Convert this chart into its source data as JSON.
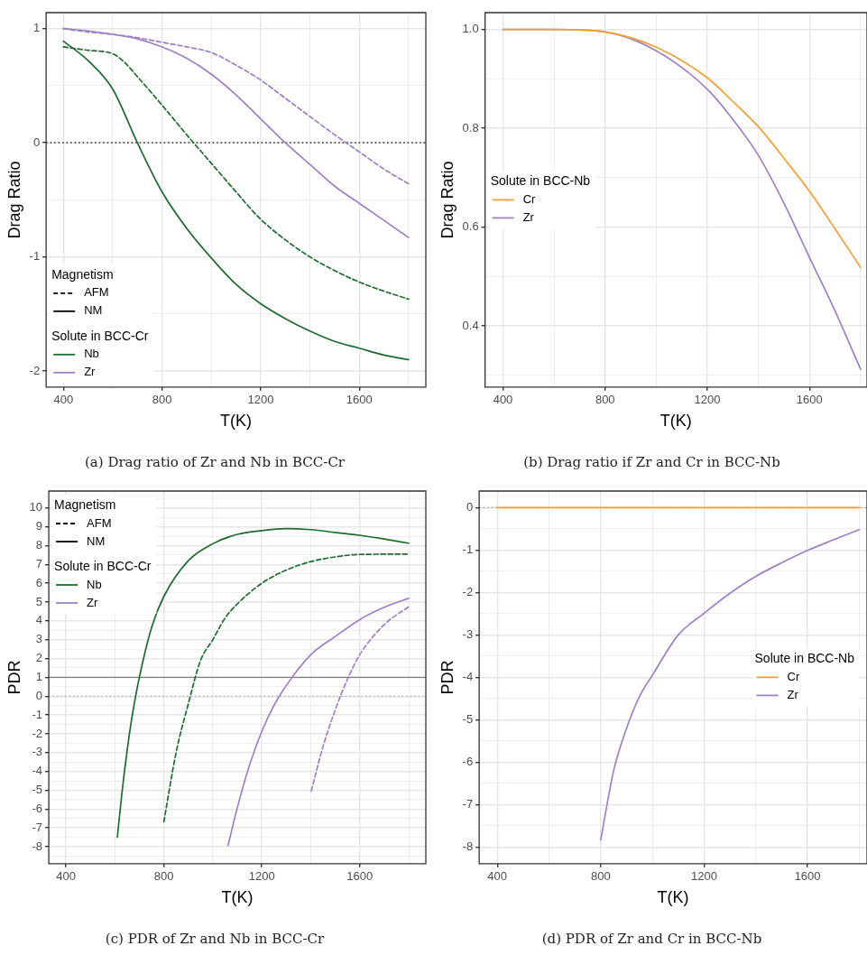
{
  "chart_data": [
    {
      "type": "line",
      "title": "(a) Drag ratio of Zr and Nb in BCC-Cr",
      "xlabel": "T(K)",
      "ylabel": "Drag Ratio",
      "legend_title": "Solute in BCC-Cr",
      "annotations": [
        "Magnetism",
        "AFM",
        "NM"
      ],
      "legend": "bottom left",
      "grid": true,
      "xlim": [
        330,
        1870
      ],
      "xticks": [
        400,
        {
          "value": 600,
          "label": null
        },
        800,
        {
          "value": 1000,
          "label": null
        },
        1200,
        {
          "value": 1400,
          "label": null
        },
        1600,
        {
          "value": 1800,
          "label": null
        }
      ],
      "ylim": [
        -2.14,
        1.14
      ],
      "yticks": [
        -2,
        {
          "value": -1.5,
          "label": null
        },
        -1,
        {
          "value": -0.5,
          "label": null
        },
        0,
        {
          "value": 0.5,
          "label": null
        },
        1
      ],
      "ref_lines": [
        {
          "axis": "y",
          "value": 0,
          "color": "#000000",
          "line_style": "dotted"
        }
      ],
      "series": [
        {
          "color": "#1e6b30",
          "line_style": "dashed",
          "x": [
            400,
            500,
            600,
            650,
            700,
            800,
            900,
            1000,
            1100,
            1200,
            1300,
            1400,
            1500,
            1600,
            1700,
            1800
          ],
          "values": [
            0.84,
            0.81,
            0.78,
            0.7,
            0.58,
            0.33,
            0.07,
            -0.18,
            -0.43,
            -0.67,
            -0.85,
            -1.0,
            -1.12,
            -1.22,
            -1.3,
            -1.37
          ]
        },
        {
          "name": "Nb",
          "color": "#1e6b30",
          "line_style": "solid",
          "x": [
            400,
            500,
            600,
            700,
            800,
            900,
            1000,
            1100,
            1200,
            1300,
            1400,
            1500,
            1600,
            1700,
            1800
          ],
          "values": [
            0.89,
            0.72,
            0.47,
            0,
            -0.43,
            -0.75,
            -1.01,
            -1.24,
            -1.41,
            -1.54,
            -1.65,
            -1.74,
            -1.8,
            -1.86,
            -1.9
          ]
        },
        {
          "color": "#9c82c4",
          "line_style": "dashed",
          "x": [
            400,
            500,
            600,
            700,
            800,
            900,
            1000,
            1100,
            1200,
            1300,
            1400,
            1500,
            1600,
            1700,
            1800
          ],
          "values": [
            1.0,
            0.97,
            0.95,
            0.92,
            0.88,
            0.84,
            0.79,
            0.68,
            0.55,
            0.39,
            0.23,
            0.07,
            -0.08,
            -0.23,
            -0.36
          ]
        },
        {
          "name": "Zr",
          "color": "#9c82c4",
          "line_style": "solid",
          "x": [
            400,
            500,
            600,
            700,
            800,
            900,
            1000,
            1100,
            1200,
            1300,
            1400,
            1500,
            1600,
            1700,
            1800
          ],
          "values": [
            1.0,
            0.98,
            0.95,
            0.91,
            0.84,
            0.74,
            0.6,
            0.42,
            0.21,
            0,
            -0.19,
            -0.38,
            -0.53,
            -0.68,
            -0.83
          ]
        }
      ]
    },
    {
      "type": "line",
      "title": "(b) Drag ratio if Zr and Cr in BCC-Nb",
      "xlabel": "T(K)",
      "ylabel": "Drag Ratio",
      "legend_title": "Solute in BCC-Nb",
      "legend": "left",
      "grid": true,
      "xlim": [
        330,
        1825
      ],
      "xticks": [
        400,
        {
          "value": 600,
          "label": null
        },
        800,
        {
          "value": 1000,
          "label": null
        },
        1200,
        {
          "value": 1400,
          "label": null
        },
        1600,
        {
          "value": 1800,
          "label": null
        }
      ],
      "ylim": [
        0.276,
        1.034
      ],
      "yticks": [
        {
          "value": 0.3,
          "label": null
        },
        0.4,
        {
          "value": 0.5,
          "label": null
        },
        0.6,
        {
          "value": 0.7,
          "label": null
        },
        0.8,
        {
          "value": 0.9,
          "label": null
        },
        {
          "value": 1,
          "label": "1.0"
        }
      ],
      "series": [
        {
          "name": "Cr",
          "color": "#f7a030",
          "x": [
            400,
            600,
            800,
            1000,
            1200,
            1300,
            1400,
            1500,
            1600,
            1700,
            1800
          ],
          "values": [
            1.0,
            1.0,
            0.995,
            0.964,
            0.902,
            0.854,
            0.803,
            0.739,
            0.672,
            0.596,
            0.518
          ]
        },
        {
          "name": "Zr",
          "color": "#9c82c4",
          "x": [
            400,
            600,
            800,
            1000,
            1200,
            1300,
            1400,
            1500,
            1600,
            1700,
            1800
          ],
          "values": [
            1.0,
            1.0,
            0.995,
            0.957,
            0.879,
            0.818,
            0.745,
            0.648,
            0.538,
            0.43,
            0.312
          ]
        }
      ]
    },
    {
      "type": "line",
      "title": "(c) PDR of Zr and Nb in BCC-Cr",
      "xlabel": "T(K)",
      "ylabel": "PDR",
      "legend_title": "Solute in BCC-Cr",
      "annotations": [
        "Magnetism",
        "AFM",
        "NM"
      ],
      "legend": "top left",
      "grid": true,
      "xlim": [
        330,
        1870
      ],
      "xticks": [
        400,
        {
          "value": 600,
          "label": null
        },
        800,
        {
          "value": 1000,
          "label": null
        },
        1200,
        {
          "value": 1400,
          "label": null
        },
        1600,
        {
          "value": 1800,
          "label": null
        }
      ],
      "ylim": [
        -8.9,
        10.9
      ],
      "yticks": [
        {
          "value": -8.5,
          "label": null
        },
        -8,
        {
          "value": -7.5,
          "label": null
        },
        -7,
        {
          "value": -6.5,
          "label": null
        },
        -6,
        {
          "value": -5.5,
          "label": null
        },
        -5,
        {
          "value": -4.5,
          "label": null
        },
        -4,
        {
          "value": -3.5,
          "label": null
        },
        -3,
        {
          "value": -2.5,
          "label": null
        },
        -2,
        {
          "value": -1.5,
          "label": null
        },
        -1,
        {
          "value": -0.5,
          "label": null
        },
        0,
        {
          "value": 0.5,
          "label": null
        },
        1,
        {
          "value": 1.5,
          "label": null
        },
        2,
        {
          "value": 2.5,
          "label": null
        },
        3,
        {
          "value": 3.5,
          "label": null
        },
        4,
        {
          "value": 4.5,
          "label": null
        },
        5,
        {
          "value": 5.5,
          "label": null
        },
        6,
        {
          "value": 6.5,
          "label": null
        },
        7,
        {
          "value": 7.5,
          "label": null
        },
        8,
        {
          "value": 8.5,
          "label": null
        },
        9,
        {
          "value": 9.5,
          "label": null
        },
        10,
        {
          "value": 10.5,
          "label": null
        }
      ],
      "ref_lines": [
        {
          "axis": "y",
          "value": 1,
          "color": "#7f7f7f",
          "line_style": "solid"
        },
        {
          "axis": "y",
          "value": 0,
          "color": "#9a9a9a",
          "line_style": "dotted"
        }
      ],
      "series": [
        {
          "color": "#1e6b30",
          "line_style": "dashed",
          "x": [
            800,
            850,
            900,
            950,
            1000,
            1050,
            1100,
            1200,
            1300,
            1400,
            1500,
            1600,
            1800
          ],
          "values": [
            -6.67,
            -3.0,
            -0.4,
            1.9,
            3.0,
            4.15,
            4.9,
            6.0,
            6.7,
            7.15,
            7.4,
            7.53,
            7.55
          ]
        },
        {
          "name": "Nb",
          "color": "#1e6b30",
          "line_style": "solid",
          "x": [
            610,
            630,
            650,
            670,
            700,
            750,
            800,
            900,
            1000,
            1100,
            1200,
            1300,
            1400,
            1500,
            1600,
            1700,
            1800
          ],
          "values": [
            -7.5,
            -5.0,
            -2.9,
            -1.1,
            1.0,
            3.66,
            5.3,
            7.2,
            8.1,
            8.6,
            8.8,
            8.9,
            8.85,
            8.7,
            8.55,
            8.35,
            8.13
          ]
        },
        {
          "color": "#9c82c4",
          "line_style": "dashed",
          "x": [
            1402,
            1450,
            1500,
            1550,
            1600,
            1700,
            1800
          ],
          "values": [
            -5.04,
            -2.68,
            -0.73,
            0.9,
            2.2,
            3.8,
            4.75
          ]
        },
        {
          "name": "Zr",
          "color": "#9c82c4",
          "line_style": "solid",
          "x": [
            1062,
            1100,
            1150,
            1200,
            1250,
            1300,
            1400,
            1500,
            1600,
            1700,
            1800
          ],
          "values": [
            -7.93,
            -5.93,
            -3.66,
            -1.87,
            -0.49,
            0.57,
            2.2,
            3.17,
            4.07,
            4.72,
            5.2
          ]
        }
      ]
    },
    {
      "type": "line",
      "title": "(d) PDR of Zr and Cr in BCC-Nb",
      "xlabel": "T(K)",
      "ylabel": "PDR",
      "legend_title": "Solute in BCC-Nb",
      "legend": "right",
      "grid": true,
      "xlim": [
        330,
        1830
      ],
      "xticks": [
        400,
        {
          "value": 600,
          "label": null
        },
        800,
        {
          "value": 1000,
          "label": null
        },
        1200,
        {
          "value": 1400,
          "label": null
        },
        1600,
        {
          "value": 1800,
          "label": null
        }
      ],
      "ylim": [
        -8.39,
        0.39
      ],
      "yticks": [
        -8,
        {
          "value": -7.5,
          "label": null
        },
        -7,
        {
          "value": -6.5,
          "label": null
        },
        -6,
        {
          "value": -5.5,
          "label": null
        },
        -5,
        {
          "value": -4.5,
          "label": null
        },
        -4,
        {
          "value": -3.5,
          "label": null
        },
        -3,
        {
          "value": -2.5,
          "label": null
        },
        -2,
        {
          "value": -1.5,
          "label": null
        },
        -1,
        {
          "value": -0.5,
          "label": null
        },
        0
      ],
      "ref_lines": [
        {
          "axis": "y",
          "value": 0,
          "color": "#9a9a9a",
          "line_style": "dotted"
        }
      ],
      "series": [
        {
          "name": "Cr",
          "color": "#f7a030",
          "x": [
            400,
            1800
          ],
          "values": [
            0,
            0
          ]
        },
        {
          "name": "Zr",
          "color": "#9c82c4",
          "x": [
            800,
            850,
            900,
            950,
            1000,
            1100,
            1200,
            1300,
            1400,
            1500,
            1600,
            1700,
            1800
          ],
          "values": [
            -7.83,
            -6.2,
            -5.2,
            -4.45,
            -3.95,
            -3.0,
            -2.49,
            -2.02,
            -1.62,
            -1.3,
            -1.01,
            -0.76,
            -0.52
          ]
        }
      ]
    }
  ]
}
